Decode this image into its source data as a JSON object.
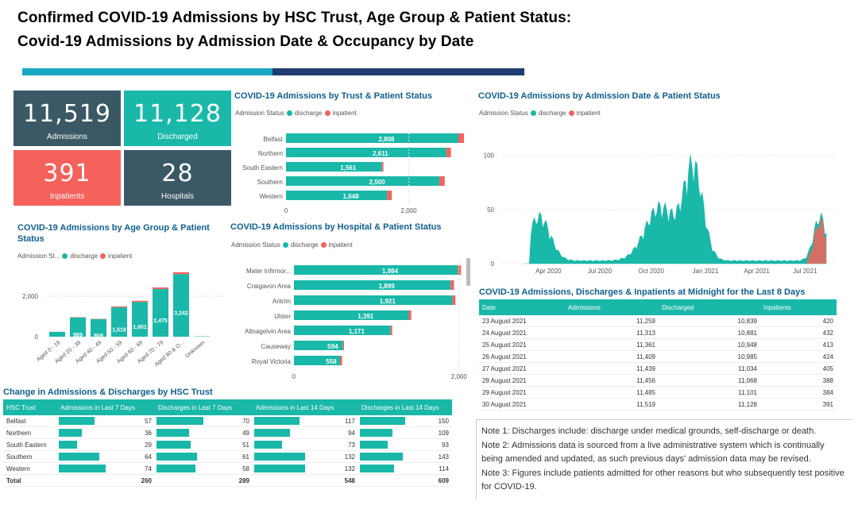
{
  "header": {
    "line1": "Confirmed COVID-19 Admissions by HSC Trust, Age Group & Patient Status:",
    "line2": "Covid-19 Admissions by Admission Date & Occupancy by Date"
  },
  "colors": {
    "discharge": "#19b8a8",
    "inpatient": "#f5615b",
    "dark": "#3b5865",
    "accent": "#1aa7c2",
    "navy": "#1f3d70"
  },
  "cards": [
    {
      "value": "11,519",
      "label": "Admissions",
      "color": "#3b5865"
    },
    {
      "value": "11,128",
      "label": "Discharged",
      "color": "#19b8a8"
    },
    {
      "value": "391",
      "label": "Inpatients",
      "color": "#f5615b"
    },
    {
      "value": "28",
      "label": "Hospitals",
      "color": "#3b5865"
    }
  ],
  "legend": {
    "status_label": "Admission Status",
    "status_label_short": "Admission St...",
    "discharge": "discharge",
    "inpatient": "inpatient"
  },
  "trust_chart": {
    "title": "COVID-19 Admissions by Trust & Patient Status",
    "axis_ticks": [
      "0",
      "2,000"
    ],
    "chart_data": {
      "type": "bar",
      "orientation": "horizontal",
      "categories": [
        "Belfast",
        "Northern",
        "South Eastern",
        "Southern",
        "Western"
      ],
      "series": [
        {
          "name": "discharge",
          "values": [
            2808,
            2611,
            1561,
            2500,
            1648
          ]
        },
        {
          "name": "inpatient",
          "values": [
            90,
            75,
            25,
            85,
            75
          ]
        }
      ],
      "labels": [
        "2,808",
        "2,611",
        "1,561",
        "2,500",
        "1,648"
      ],
      "xlim": [
        0,
        2950
      ]
    }
  },
  "date_chart": {
    "title": "COVID-19 Admissions by Admission Date & Patient Status",
    "yticks": [
      "100",
      "50",
      "0"
    ],
    "xticks": [
      "Apr 2020",
      "Jul 2020",
      "Oct 2020",
      "Jan 2021",
      "Apr 2021",
      "Jul 2021"
    ],
    "chart_data": {
      "type": "area",
      "x_range": [
        "2020-03",
        "2021-08"
      ],
      "ylim": [
        0,
        110
      ],
      "peaks": [
        {
          "period": "Apr 2020",
          "value": 45
        },
        {
          "period": "Nov 2020",
          "value": 70
        },
        {
          "period": "Jan 2021",
          "value": 110
        },
        {
          "period": "Aug 2021",
          "value": 55
        }
      ]
    }
  },
  "age_chart": {
    "title": "COVID-19 Admissions by Age Group & Patient Status",
    "yticks": [
      "2,000",
      "0"
    ],
    "chart_data": {
      "type": "bar",
      "categories": [
        "Aged 0 - 19",
        "Aged 20 - 39",
        "Aged 40 - 49",
        "Aged 50 - 59",
        "Aged 60 - 69",
        "Aged 70 - 79",
        "Aged 80 & O...",
        "Unknown"
      ],
      "series": [
        {
          "name": "discharge",
          "values": [
            250,
            989,
            909,
            1519,
            1801,
            2475,
            3242,
            20
          ]
        },
        {
          "name": "inpatient",
          "values": [
            5,
            20,
            15,
            50,
            60,
            80,
            100,
            0
          ]
        }
      ],
      "labels": [
        "",
        "989",
        "909",
        "1,519",
        "1,801",
        "2,475",
        "3,242",
        ""
      ],
      "ylim": [
        0,
        3500
      ]
    }
  },
  "hospital_chart": {
    "title": "COVID-19 Admissions by Hospital & Patient Status",
    "axis_ticks": [
      "0",
      "2,000"
    ],
    "chart_data": {
      "type": "bar",
      "orientation": "horizontal",
      "categories": [
        "Mater Infirmor...",
        "Craigavon Area",
        "Antrim",
        "Ulster",
        "Altnagelvin Area",
        "Causeway",
        "Royal Victoria"
      ],
      "series": [
        {
          "name": "discharge",
          "values": [
            1984,
            1899,
            1921,
            1391,
            1171,
            594,
            558
          ]
        },
        {
          "name": "inpatient",
          "values": [
            40,
            40,
            35,
            30,
            20,
            12,
            25
          ]
        }
      ],
      "labels": [
        "1,984",
        "1,899",
        "1,921",
        "1,391",
        "1,171",
        "594",
        "558"
      ],
      "xlim": [
        0,
        2050
      ]
    }
  },
  "midnight_table": {
    "title": "COVID-19 Admissions, Discharges & Inpatients at Midnight for the Last 8 Days",
    "columns": [
      "Date",
      "Admissions",
      "Discharged",
      "Inpatients"
    ],
    "rows": [
      [
        "23 August 2021",
        "11,259",
        "10,839",
        "420"
      ],
      [
        "24 August 2021",
        "11,313",
        "10,881",
        "432"
      ],
      [
        "25 August 2021",
        "11,361",
        "10,948",
        "413"
      ],
      [
        "26 August 2021",
        "11,409",
        "10,985",
        "424"
      ],
      [
        "27 August 2021",
        "11,439",
        "11,034",
        "405"
      ],
      [
        "28 August 2021",
        "11,456",
        "11,068",
        "388"
      ],
      [
        "29 August 2021",
        "11,485",
        "11,101",
        "384"
      ],
      [
        "30 August 2021",
        "11,519",
        "11,128",
        "391"
      ]
    ]
  },
  "change_table": {
    "title": "Change in Admissions & Discharges by HSC Trust",
    "columns": [
      "HSC Trust",
      "Admissions in Last 7 Days",
      "Discharges in Last 7 Days",
      "Admissions in Last 14 Days",
      "Discharges in Last 14 Days"
    ],
    "rows": [
      [
        "Belfast",
        "57",
        "70",
        "117",
        "150"
      ],
      [
        "Northern",
        "36",
        "49",
        "94",
        "109"
      ],
      [
        "South Eastern",
        "29",
        "51",
        "73",
        "93"
      ],
      [
        "Southern",
        "64",
        "61",
        "132",
        "143"
      ],
      [
        "Western",
        "74",
        "58",
        "132",
        "114"
      ]
    ],
    "total": [
      "Total",
      "260",
      "289",
      "548",
      "609"
    ]
  },
  "notes": [
    "Note 1: Discharges include: discharge under medical grounds, self-discharge or death.",
    "Note 2: Admissions data is sourced from a live administrative system which is continually being amended and updated, as such previous days' admission data may be revised.",
    "Note 3: Figures include patients admitted for other reasons but who subsequently test positive for COVID-19."
  ]
}
